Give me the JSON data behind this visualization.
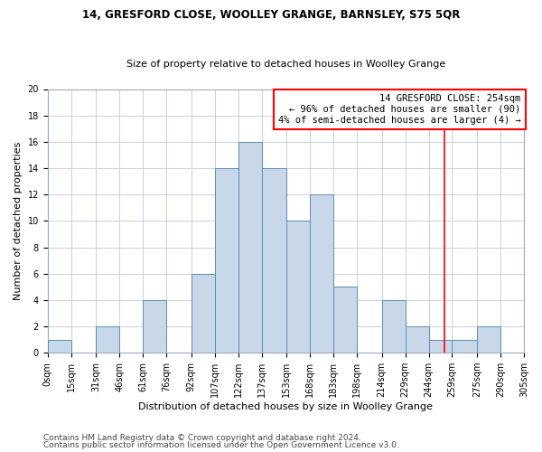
{
  "title1": "14, GRESFORD CLOSE, WOOLLEY GRANGE, BARNSLEY, S75 5QR",
  "title2": "Size of property relative to detached houses in Woolley Grange",
  "xlabel": "Distribution of detached houses by size in Woolley Grange",
  "ylabel": "Number of detached properties",
  "footer1": "Contains HM Land Registry data © Crown copyright and database right 2024.",
  "footer2": "Contains public sector information licensed under the Open Government Licence v3.0.",
  "bin_labels": [
    "0sqm",
    "15sqm",
    "31sqm",
    "46sqm",
    "61sqm",
    "76sqm",
    "92sqm",
    "107sqm",
    "122sqm",
    "137sqm",
    "153sqm",
    "168sqm",
    "183sqm",
    "198sqm",
    "214sqm",
    "229sqm",
    "244sqm",
    "259sqm",
    "275sqm",
    "290sqm",
    "305sqm"
  ],
  "bin_edges": [
    0,
    15,
    31,
    46,
    61,
    76,
    92,
    107,
    122,
    137,
    153,
    168,
    183,
    198,
    214,
    229,
    244,
    259,
    275,
    290,
    305
  ],
  "bar_heights": [
    1,
    0,
    2,
    0,
    4,
    0,
    6,
    14,
    16,
    14,
    10,
    12,
    5,
    0,
    4,
    2,
    1,
    1,
    2,
    0,
    0
  ],
  "bar_color": "#c8d8e8",
  "bar_edge_color": "#5b8db8",
  "grid_color": "#c8d0dc",
  "annotation_line1": "14 GRESFORD CLOSE: 254sqm",
  "annotation_line2": "← 96% of detached houses are smaller (90)",
  "annotation_line3": "4% of semi-detached houses are larger (4) →",
  "vline_x": 254,
  "ylim": [
    0,
    20
  ],
  "yticks": [
    0,
    2,
    4,
    6,
    8,
    10,
    12,
    14,
    16,
    18,
    20
  ],
  "xlim": [
    0,
    305
  ],
  "title1_fontsize": 8.5,
  "title2_fontsize": 8.0,
  "xlabel_fontsize": 8.0,
  "ylabel_fontsize": 8.0,
  "tick_fontsize": 7.0,
  "footer_fontsize": 6.5,
  "annot_fontsize": 7.5
}
